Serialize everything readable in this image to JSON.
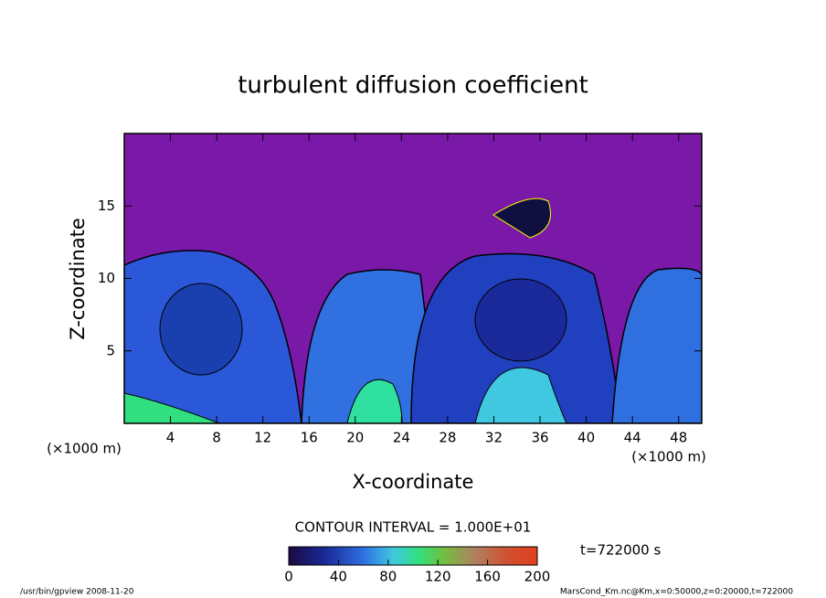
{
  "chart_data": {
    "type": "contour",
    "title": "turbulent diffusion coefficient",
    "x_label": "X-coordinate",
    "y_label": "Z-coordinate",
    "x_unit": "(×1000 m)",
    "y_unit": "(×1000 m)",
    "xlim": [
      0,
      50
    ],
    "xticks": [
      4,
      8,
      12,
      16,
      20,
      24,
      28,
      32,
      36,
      40,
      44,
      48
    ],
    "ylim": [
      0,
      20
    ],
    "yticks": [
      5,
      10,
      15
    ],
    "contour_interval_label": "CONTOUR INTERVAL = 1.000E+01",
    "time_label": "t=722000 s",
    "colorbar": {
      "lim": [
        0,
        200
      ],
      "ticks": [
        0,
        40,
        80,
        120,
        160,
        200
      ]
    },
    "footer_left": "/usr/bin/gpview  2008-11-20",
    "footer_right": "MarsCond_Km.nc@Km,x=0:50000,z=0:20000,t=722000"
  }
}
